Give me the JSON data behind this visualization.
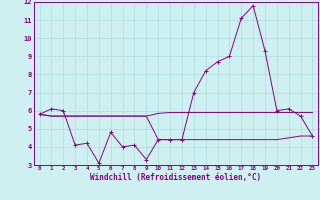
{
  "title": "",
  "xlabel": "Windchill (Refroidissement éolien,°C)",
  "bg_color": "#cff0f0",
  "grid_color": "#aadddd",
  "line_color": "#880088",
  "x_hours": [
    0,
    1,
    2,
    3,
    4,
    5,
    6,
    7,
    8,
    9,
    10,
    11,
    12,
    13,
    14,
    15,
    16,
    17,
    18,
    19,
    20,
    21,
    22,
    23
  ],
  "line1": [
    5.8,
    6.1,
    6.0,
    4.1,
    4.2,
    3.1,
    4.8,
    4.0,
    4.1,
    3.3,
    4.4,
    4.4,
    4.4,
    7.0,
    8.2,
    8.7,
    9.0,
    11.1,
    11.8,
    9.3,
    6.0,
    6.1,
    5.7,
    4.6
  ],
  "line2": [
    5.8,
    5.7,
    5.7,
    5.7,
    5.7,
    5.7,
    5.7,
    5.7,
    5.7,
    5.7,
    5.85,
    5.9,
    5.9,
    5.9,
    5.9,
    5.9,
    5.9,
    5.9,
    5.9,
    5.9,
    5.9,
    5.9,
    5.9,
    5.9
  ],
  "line3": [
    5.8,
    5.7,
    5.7,
    5.7,
    5.7,
    5.7,
    5.7,
    5.7,
    5.7,
    5.7,
    4.4,
    4.4,
    4.4,
    4.4,
    4.4,
    4.4,
    4.4,
    4.4,
    4.4,
    4.4,
    4.4,
    4.5,
    4.6,
    4.6
  ],
  "ylim_min": 3,
  "ylim_max": 12,
  "yticks": [
    3,
    4,
    5,
    6,
    7,
    8,
    9,
    10,
    11,
    12
  ]
}
